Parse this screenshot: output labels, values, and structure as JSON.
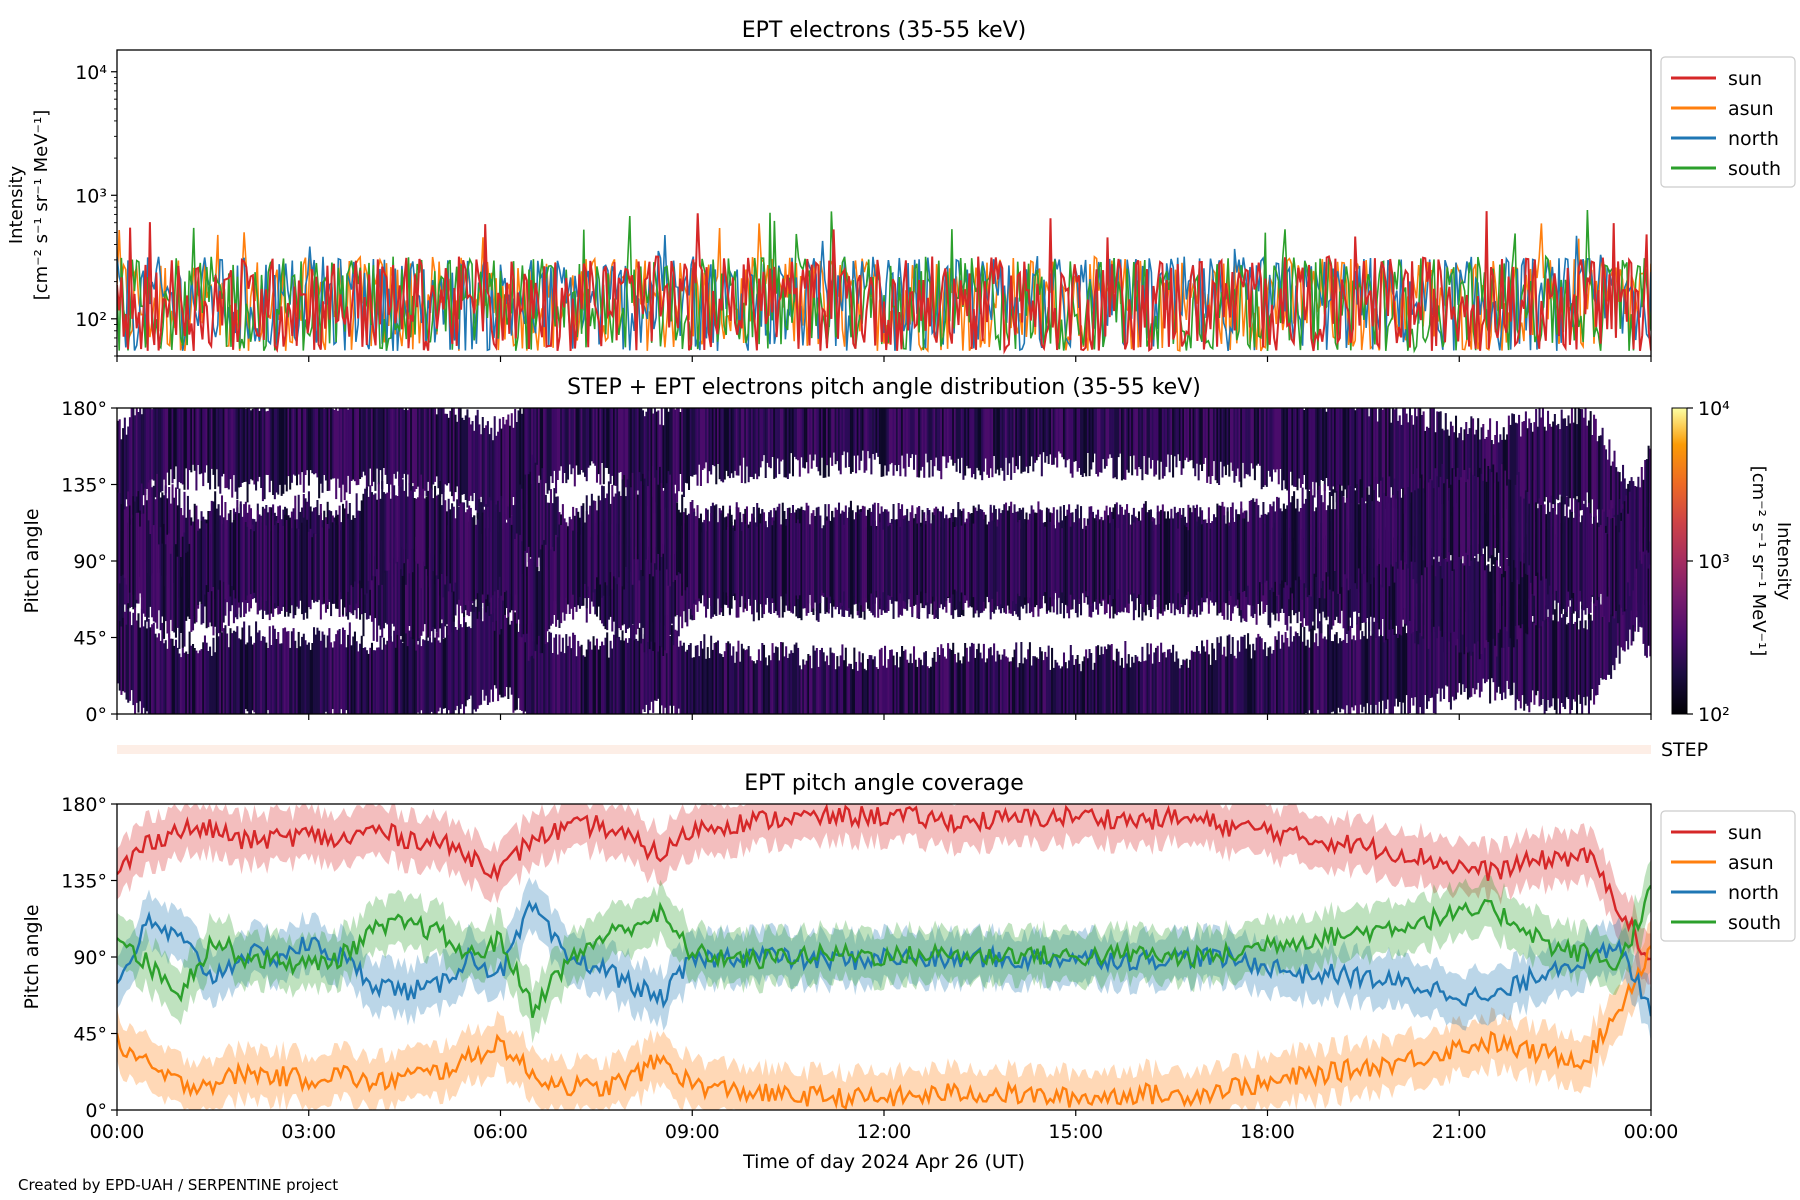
{
  "footer": "Created by EPD-UAH / SERPENTINE project",
  "chart_data": [
    {
      "type": "line",
      "title": "EPT electrons (35-55 keV)",
      "ylabel_line1": "Intensity",
      "ylabel_line2": "[cm⁻² s⁻¹ sr⁻¹ MeV⁻¹]",
      "yscale": "log",
      "ylim": [
        50,
        15000
      ],
      "yticks": [
        "10²",
        "10³",
        "10⁴"
      ],
      "ytick_values": [
        100,
        1000,
        10000
      ],
      "xlim_hours": [
        0,
        24
      ],
      "legend_position": "outside top-right",
      "series": [
        {
          "name": "sun",
          "color": "#d62728",
          "typical_range": [
            55,
            320
          ],
          "peak": 750
        },
        {
          "name": "asun",
          "color": "#ff7f0e",
          "typical_range": [
            55,
            320
          ],
          "peak": 600
        },
        {
          "name": "north",
          "color": "#1f77b4",
          "typical_range": [
            55,
            320
          ],
          "peak": 500
        },
        {
          "name": "south",
          "color": "#2ca02c",
          "typical_range": [
            55,
            320
          ],
          "peak": 780
        }
      ]
    },
    {
      "type": "heatmap",
      "title": "STEP + EPT electrons pitch angle distribution (35-55 keV)",
      "ylabel": "Pitch angle",
      "ylim": [
        0,
        180
      ],
      "yticks": [
        "0°",
        "45°",
        "90°",
        "135°",
        "180°"
      ],
      "xlim_hours": [
        0,
        24
      ],
      "colorbar": {
        "label_line1": "Intensity",
        "label_line2": "[cm⁻² s⁻¹ sr⁻¹ MeV⁻¹]",
        "scale": "log",
        "range": [
          100,
          10000
        ],
        "ticks": [
          "10²",
          "10³",
          "10⁴"
        ],
        "colormap": "inferno"
      },
      "typical_intensity": 150,
      "description_of_coverage": "three bands of data centred near the sun, north/south and asun pitch angles"
    },
    {
      "type": "bar",
      "label": "STEP",
      "color": "#fdeee6"
    },
    {
      "type": "line",
      "title": "EPT pitch angle coverage",
      "ylabel": "Pitch angle",
      "xlabel": "Time of day 2024 Apr 26 (UT)",
      "ylim": [
        0,
        180
      ],
      "yticks": [
        "0°",
        "45°",
        "90°",
        "135°",
        "180°"
      ],
      "xticks": [
        "00:00",
        "03:00",
        "06:00",
        "09:00",
        "12:00",
        "15:00",
        "18:00",
        "21:00",
        "00:00"
      ],
      "xtick_hours": [
        0,
        3,
        6,
        9,
        12,
        15,
        18,
        21,
        24
      ],
      "legend_position": "outside top-right",
      "x_hours": [
        0,
        0.5,
        1,
        1.5,
        2,
        2.5,
        3,
        3.5,
        4,
        4.5,
        5,
        5.5,
        6,
        6.5,
        7,
        7.5,
        8,
        8.5,
        9,
        9.5,
        10,
        10.5,
        11,
        11.5,
        12,
        12.5,
        13,
        13.5,
        14,
        14.5,
        15,
        15.5,
        16,
        16.5,
        17,
        17.5,
        18,
        18.5,
        19,
        19.5,
        20,
        20.5,
        21,
        21.5,
        22,
        22.5,
        23,
        23.5,
        24
      ],
      "series": [
        {
          "name": "sun",
          "color": "#d62728",
          "band_halfwidth": 15,
          "values": [
            140,
            158,
            165,
            165,
            158,
            160,
            162,
            158,
            165,
            160,
            158,
            150,
            140,
            160,
            165,
            168,
            160,
            150,
            165,
            168,
            170,
            172,
            172,
            173,
            173,
            172,
            170,
            170,
            171,
            172,
            173,
            172,
            170,
            172,
            170,
            166,
            165,
            160,
            158,
            155,
            152,
            148,
            143,
            140,
            145,
            148,
            150,
            120,
            85
          ]
        },
        {
          "name": "asun",
          "color": "#ff7f0e",
          "band_halfwidth": 15,
          "values": [
            40,
            25,
            15,
            16,
            22,
            20,
            18,
            22,
            15,
            20,
            22,
            30,
            40,
            20,
            15,
            12,
            18,
            30,
            15,
            12,
            10,
            8,
            8,
            7,
            7,
            8,
            10,
            10,
            9,
            8,
            7,
            8,
            10,
            8,
            10,
            14,
            15,
            20,
            22,
            25,
            28,
            32,
            37,
            40,
            35,
            32,
            30,
            60,
            95
          ]
        },
        {
          "name": "north",
          "color": "#1f77b4",
          "band_halfwidth": 15,
          "values": [
            75,
            110,
            100,
            78,
            92,
            90,
            98,
            90,
            75,
            70,
            72,
            90,
            80,
            120,
            90,
            85,
            75,
            65,
            88,
            90,
            92,
            89,
            88,
            88,
            90,
            89,
            88,
            90,
            88,
            89,
            90,
            89,
            88,
            90,
            90,
            88,
            85,
            80,
            80,
            78,
            75,
            72,
            68,
            65,
            75,
            85,
            88,
            95,
            60
          ]
        },
        {
          "name": "south",
          "color": "#2ca02c",
          "band_halfwidth": 15,
          "values": [
            105,
            85,
            70,
            100,
            90,
            88,
            85,
            90,
            105,
            110,
            105,
            90,
            100,
            60,
            85,
            100,
            108,
            115,
            92,
            90,
            88,
            91,
            91,
            92,
            90,
            91,
            92,
            90,
            92,
            91,
            90,
            91,
            92,
            90,
            90,
            92,
            98,
            100,
            102,
            105,
            108,
            112,
            115,
            118,
            108,
            95,
            92,
            85,
            130
          ]
        }
      ]
    }
  ]
}
